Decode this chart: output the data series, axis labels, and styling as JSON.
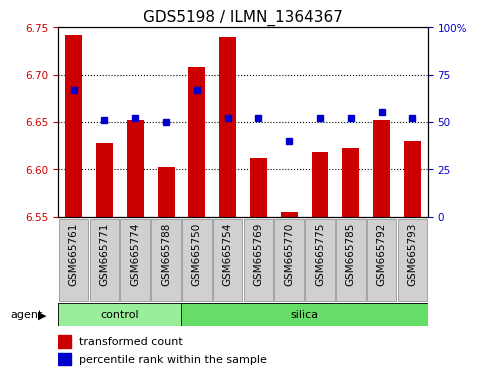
{
  "title": "GDS5198 / ILMN_1364367",
  "samples": [
    "GSM665761",
    "GSM665771",
    "GSM665774",
    "GSM665788",
    "GSM665750",
    "GSM665754",
    "GSM665769",
    "GSM665770",
    "GSM665775",
    "GSM665785",
    "GSM665792",
    "GSM665793"
  ],
  "red_values": [
    6.742,
    6.628,
    6.652,
    6.602,
    6.708,
    6.74,
    6.612,
    6.555,
    6.618,
    6.622,
    6.652,
    6.63
  ],
  "blue_values": [
    67,
    51,
    52,
    50,
    67,
    52,
    52,
    40,
    52,
    52,
    55,
    52
  ],
  "ylim_left": [
    6.55,
    6.75
  ],
  "ylim_right": [
    0,
    100
  ],
  "yticks_left": [
    6.55,
    6.6,
    6.65,
    6.7,
    6.75
  ],
  "yticks_right": [
    0,
    25,
    50,
    75,
    100
  ],
  "ytick_right_labels": [
    "0",
    "25",
    "50",
    "75",
    "100%"
  ],
  "bar_bottom": 6.55,
  "control_count": 4,
  "silica_count": 8,
  "bar_color": "#cc0000",
  "blue_color": "#0000cc",
  "control_color": "#99ee99",
  "silica_color": "#66dd66",
  "agent_label": "agent",
  "control_label": "control",
  "silica_label": "silica",
  "legend_red": "transformed count",
  "legend_blue": "percentile rank within the sample",
  "bar_width": 0.55,
  "background_color": "#ffffff",
  "title_fontsize": 11,
  "tick_fontsize": 7.5,
  "label_fontsize": 8
}
